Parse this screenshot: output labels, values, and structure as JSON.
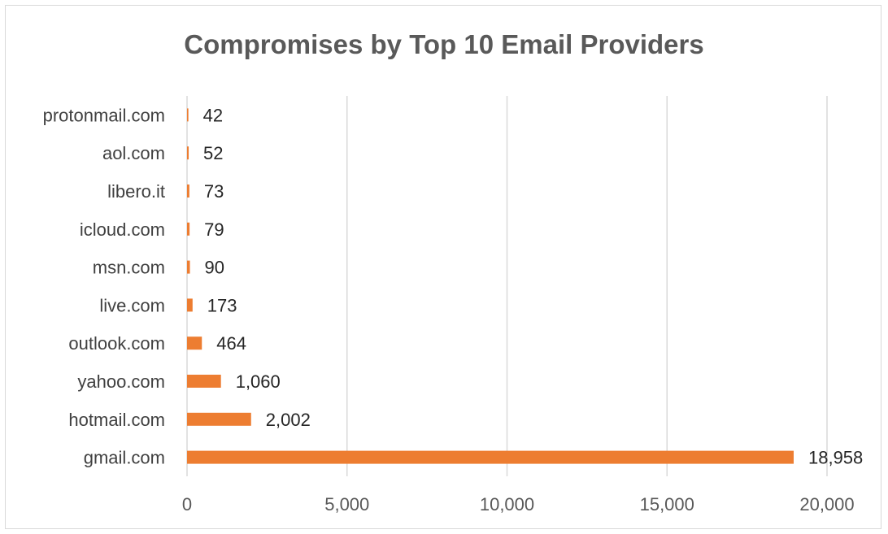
{
  "chart_data": {
    "type": "bar",
    "orientation": "horizontal",
    "title": "Compromises by Top 10 Email Providers",
    "xlabel": "",
    "ylabel": "",
    "categories": [
      "protonmail.com",
      "aol.com",
      "libero.it",
      "icloud.com",
      "msn.com",
      "live.com",
      "outlook.com",
      "yahoo.com",
      "hotmail.com",
      "gmail.com"
    ],
    "values": [
      42,
      52,
      73,
      79,
      90,
      173,
      464,
      1060,
      2002,
      18958
    ],
    "value_labels": [
      "42",
      "52",
      "73",
      "79",
      "90",
      "173",
      "464",
      "1,060",
      "2,002",
      "18,958"
    ],
    "xlim": [
      0,
      20000
    ],
    "ticks": [
      0,
      5000,
      10000,
      15000,
      20000
    ],
    "tick_labels": [
      "0",
      "5,000",
      "10,000",
      "15,000",
      "20,000"
    ],
    "grid": "vertical",
    "legend": "none",
    "bar_color": "#ED7D31",
    "grid_color": "#D9D9D9"
  }
}
